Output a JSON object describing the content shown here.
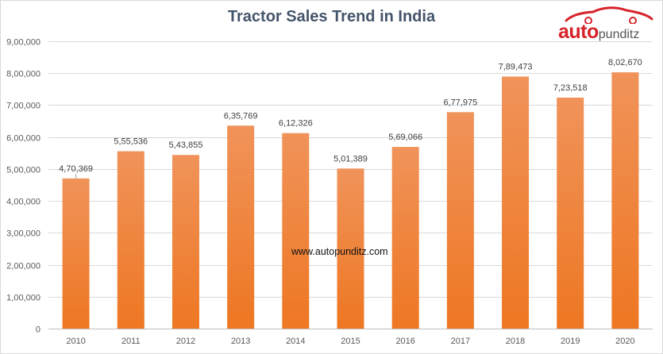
{
  "chart_data": {
    "type": "bar",
    "title": "Tractor Sales Trend in India",
    "categories": [
      "2010",
      "2011",
      "2012",
      "2013",
      "2014",
      "2015",
      "2016",
      "2017",
      "2018",
      "2019",
      "2020"
    ],
    "values": [
      470369,
      555536,
      543855,
      635769,
      612326,
      501389,
      569066,
      677975,
      789473,
      723518,
      802670
    ],
    "data_labels": [
      "4,70,369",
      "5,55,536",
      "5,43,855",
      "6,35,769",
      "6,12,326",
      "5,01,389",
      "5,69,066",
      "6,77,975",
      "7,89,473",
      "7,23,518",
      "8,02,670"
    ],
    "ylim": [
      0,
      900000
    ],
    "yticks": [
      0,
      100000,
      200000,
      300000,
      400000,
      500000,
      600000,
      700000,
      800000,
      900000
    ],
    "ytick_labels": [
      "0",
      "1,00,000",
      "2,00,000",
      "3,00,000",
      "4,00,000",
      "5,00,000",
      "6,00,000",
      "7,00,000",
      "8,00,000",
      "9,00,000"
    ],
    "xlabel": "",
    "ylabel": "",
    "grid": true,
    "bar_color_top": "#f0935a",
    "bar_color_bottom": "#ee7722"
  },
  "logo": {
    "text_main": "auto",
    "text_sub": "punditz",
    "color": "#d6232a"
  },
  "watermark": "www.autopunditz.com"
}
